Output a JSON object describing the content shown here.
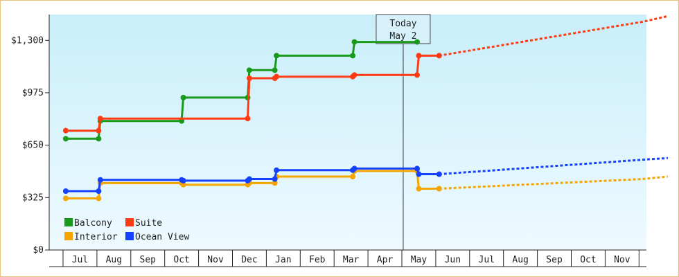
{
  "chart_data": {
    "type": "line",
    "step": true,
    "y_ticks": [
      0,
      325,
      650,
      975,
      1300
    ],
    "y_tick_labels": [
      "$0",
      "$325",
      "$650",
      "$975",
      "$1,300"
    ],
    "ylim": [
      0,
      1460
    ],
    "x_months": [
      "Jul",
      "Aug",
      "Sep",
      "Oct",
      "Nov",
      "Dec",
      "Jan",
      "Feb",
      "Mar",
      "Apr",
      "May",
      "Jun",
      "Jul",
      "Aug",
      "Sep",
      "Oct",
      "Nov"
    ],
    "today": {
      "line1": "Today",
      "line2": "May 2",
      "x": 10.04
    },
    "legend": [
      {
        "name": "Balcony",
        "color": "#1a9a1a"
      },
      {
        "name": "Suite",
        "color": "#ff3b14"
      },
      {
        "name": "Interior",
        "color": "#f5a500"
      },
      {
        "name": "Ocean View",
        "color": "#1440ff"
      }
    ],
    "series": [
      {
        "name": "Balcony",
        "color": "#1a9a1a",
        "points": [
          [
            -0.42,
            690
          ],
          [
            0.55,
            690
          ],
          [
            0.6,
            800
          ],
          [
            3.0,
            800
          ],
          [
            3.05,
            945
          ],
          [
            4.95,
            945
          ],
          [
            5.0,
            1115
          ],
          [
            5.75,
            1115
          ],
          [
            5.8,
            1205
          ],
          [
            8.05,
            1205
          ],
          [
            8.1,
            1290
          ],
          [
            9.95,
            1290
          ]
        ]
      },
      {
        "name": "Suite",
        "color": "#ff3b14",
        "points": [
          [
            -0.42,
            740
          ],
          [
            0.55,
            740
          ],
          [
            0.6,
            815
          ],
          [
            4.95,
            815
          ],
          [
            5.0,
            1065
          ],
          [
            5.75,
            1065
          ],
          [
            5.8,
            1075
          ],
          [
            8.05,
            1075
          ],
          [
            8.1,
            1085
          ],
          [
            9.95,
            1085
          ],
          [
            10.0,
            1205
          ],
          [
            10.6,
            1205
          ]
        ],
        "forecast": [
          [
            10.6,
            1205
          ],
          [
            11.6,
            1240
          ],
          [
            12.6,
            1275
          ],
          [
            13.6,
            1310
          ],
          [
            14.6,
            1345
          ],
          [
            15.6,
            1380
          ],
          [
            16.6,
            1415
          ],
          [
            17.35,
            1450
          ]
        ]
      },
      {
        "name": "Interior",
        "color": "#f5a500",
        "points": [
          [
            -0.42,
            320
          ],
          [
            0.55,
            320
          ],
          [
            0.6,
            415
          ],
          [
            3.0,
            415
          ],
          [
            3.05,
            405
          ],
          [
            4.95,
            405
          ],
          [
            5.0,
            415
          ],
          [
            5.75,
            415
          ],
          [
            5.8,
            455
          ],
          [
            8.05,
            455
          ],
          [
            8.1,
            490
          ],
          [
            9.95,
            490
          ],
          [
            10.0,
            380
          ],
          [
            10.6,
            380
          ]
        ],
        "forecast": [
          [
            10.6,
            380
          ],
          [
            11.6,
            390
          ],
          [
            12.6,
            400
          ],
          [
            13.6,
            410
          ],
          [
            14.6,
            420
          ],
          [
            15.6,
            430
          ],
          [
            16.6,
            440
          ],
          [
            17.35,
            455
          ]
        ]
      },
      {
        "name": "Ocean View",
        "color": "#1440ff",
        "points": [
          [
            -0.42,
            365
          ],
          [
            0.55,
            365
          ],
          [
            0.6,
            435
          ],
          [
            3.0,
            435
          ],
          [
            3.05,
            430
          ],
          [
            4.95,
            430
          ],
          [
            5.0,
            440
          ],
          [
            5.75,
            440
          ],
          [
            5.8,
            495
          ],
          [
            8.05,
            495
          ],
          [
            8.1,
            505
          ],
          [
            9.95,
            505
          ],
          [
            10.0,
            470
          ],
          [
            10.6,
            470
          ]
        ],
        "forecast": [
          [
            10.6,
            470
          ],
          [
            11.6,
            485
          ],
          [
            12.6,
            500
          ],
          [
            13.6,
            515
          ],
          [
            14.6,
            530
          ],
          [
            15.6,
            545
          ],
          [
            16.6,
            560
          ],
          [
            17.35,
            570
          ]
        ]
      }
    ]
  }
}
